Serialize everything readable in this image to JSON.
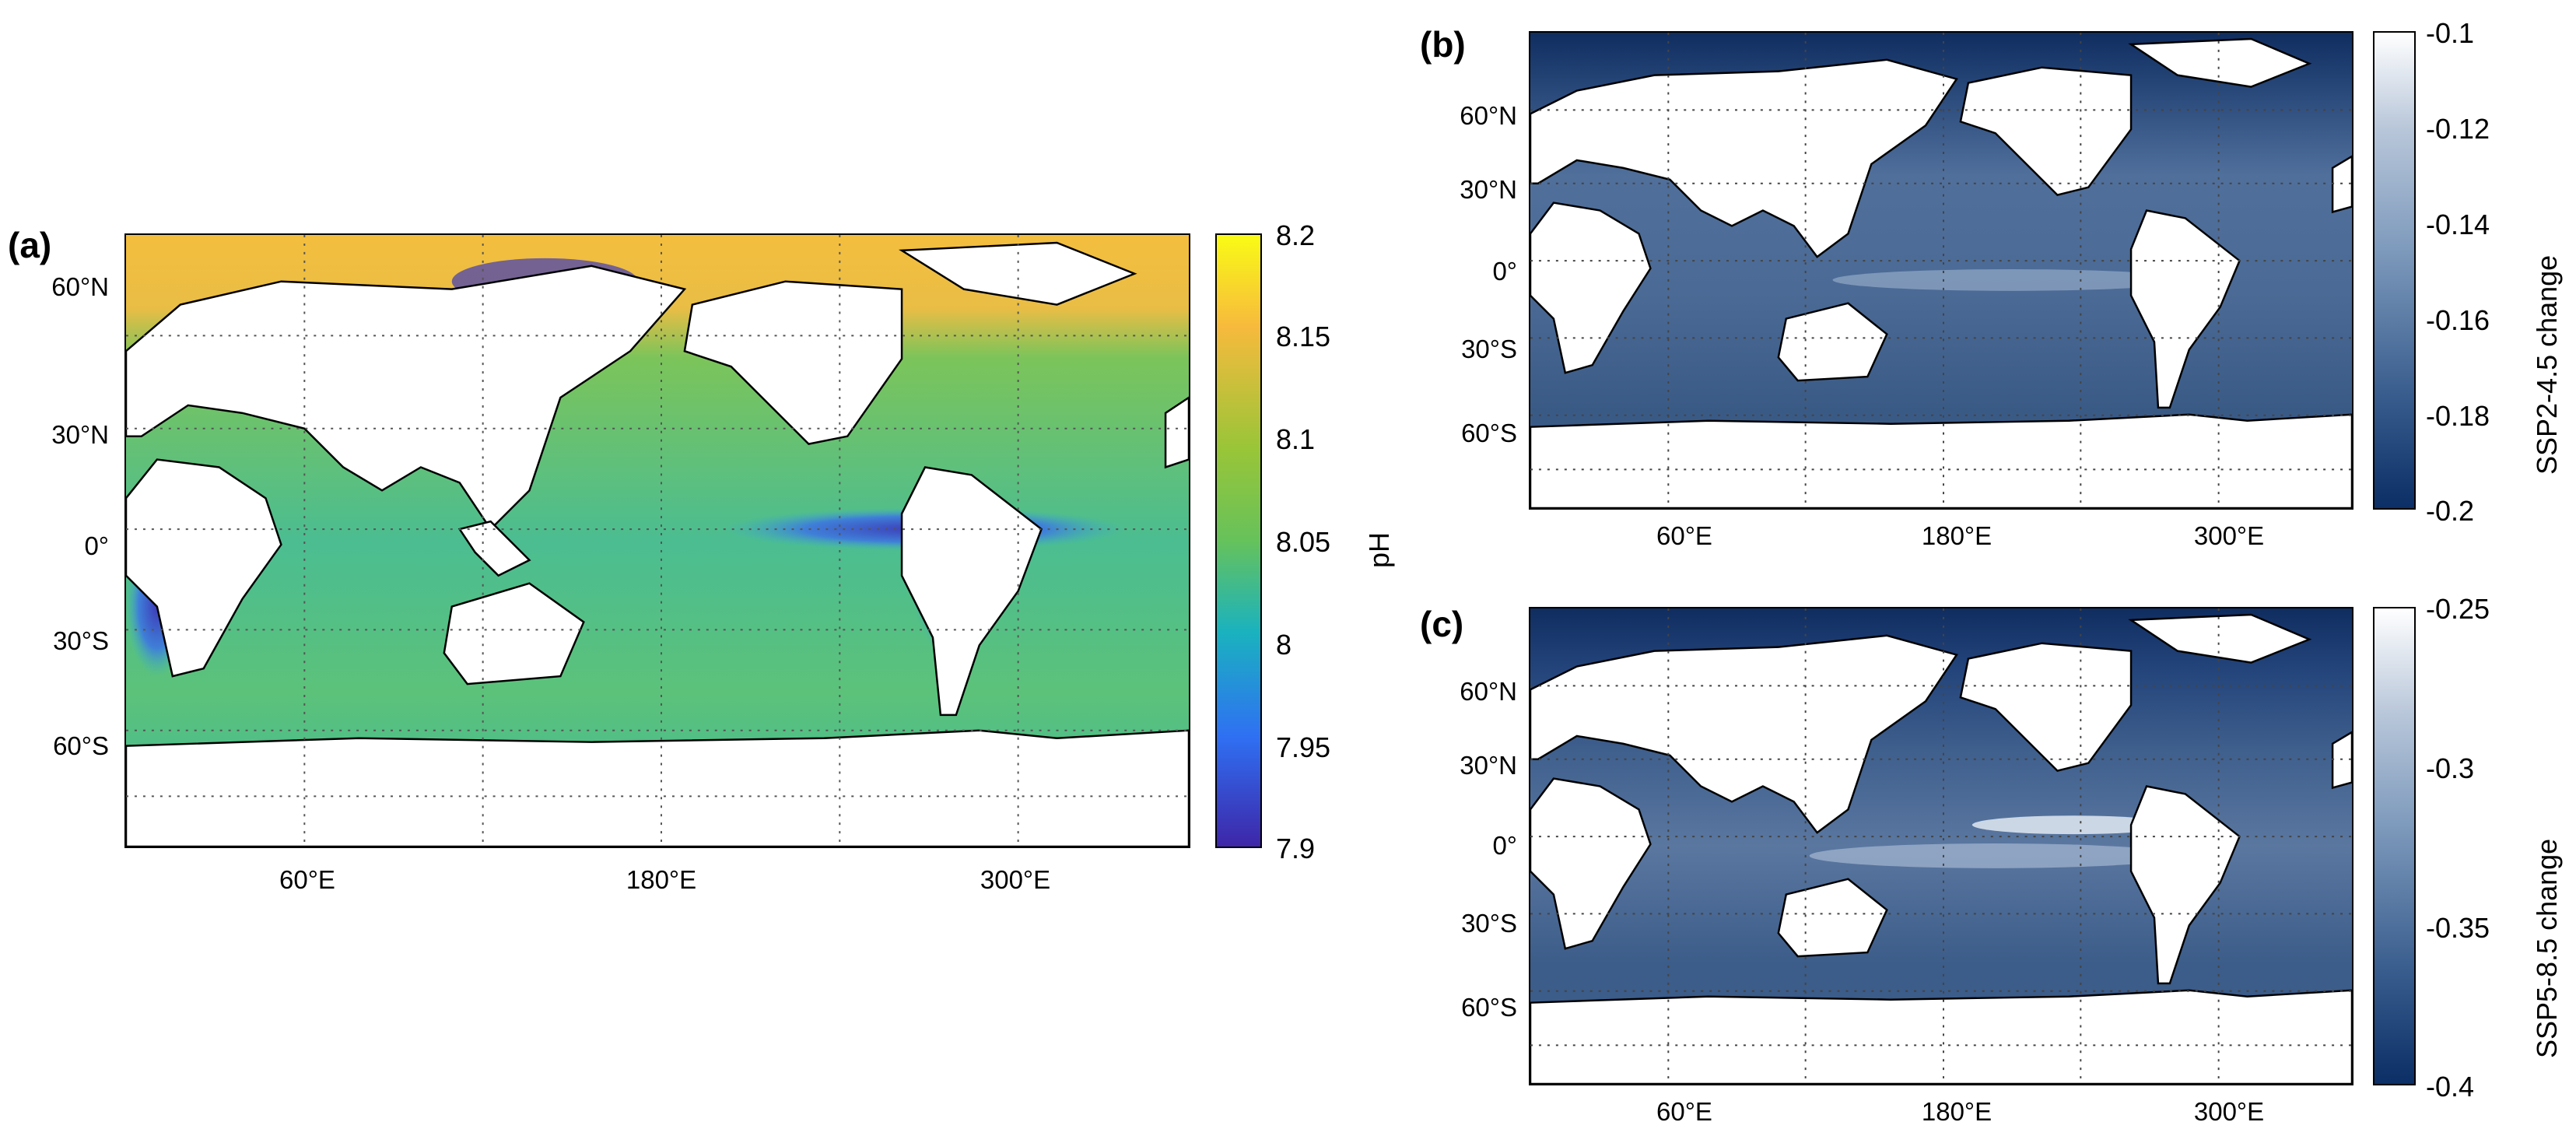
{
  "figure": {
    "panels": [
      {
        "id": "a",
        "label": "(a)",
        "lat_labels": [
          "60°N",
          "30°N",
          "0°",
          "30°S",
          "60°S"
        ],
        "lon_labels": [
          "60°E",
          "180°E",
          "300°E"
        ],
        "colorbar": {
          "title": "pH",
          "ticks": [
            "8.2",
            "8.15",
            "8.1",
            "8.05",
            "8",
            "7.95",
            "7.9"
          ],
          "range": [
            7.9,
            8.2
          ],
          "colormap": "parula",
          "colors": [
            "#3e26a8",
            "#2f70f3",
            "#1ab2bf",
            "#66c25b",
            "#99c538",
            "#f7ba3d",
            "#f9fb15"
          ]
        }
      },
      {
        "id": "b",
        "label": "(b)",
        "lat_labels": [
          "60°N",
          "30°N",
          "0°",
          "30°S",
          "60°S"
        ],
        "lon_labels": [
          "60°E",
          "180°E",
          "300°E"
        ],
        "colorbar": {
          "title": "SSP2-4.5 change",
          "ticks": [
            "-0.1",
            "-0.12",
            "-0.14",
            "-0.16",
            "-0.18",
            "-0.2"
          ],
          "range": [
            -0.2,
            -0.1
          ],
          "colormap": "blue-white",
          "colors": [
            "#0b2f66",
            "#3b5f8f",
            "#7f9bbd",
            "#ffffff"
          ]
        }
      },
      {
        "id": "c",
        "label": "(c)",
        "lat_labels": [
          "60°N",
          "30°N",
          "0°",
          "30°S",
          "60°S"
        ],
        "lon_labels": [
          "60°E",
          "180°E",
          "300°E"
        ],
        "colorbar": {
          "title": "SSP5-8.5 change",
          "ticks": [
            "-0.25",
            "-0.3",
            "-0.35",
            "-0.4"
          ],
          "range": [
            -0.4,
            -0.25
          ],
          "colormap": "blue-white",
          "colors": [
            "#0b2f66",
            "#3b5f8f",
            "#7f9bbd",
            "#ffffff"
          ]
        }
      }
    ]
  }
}
